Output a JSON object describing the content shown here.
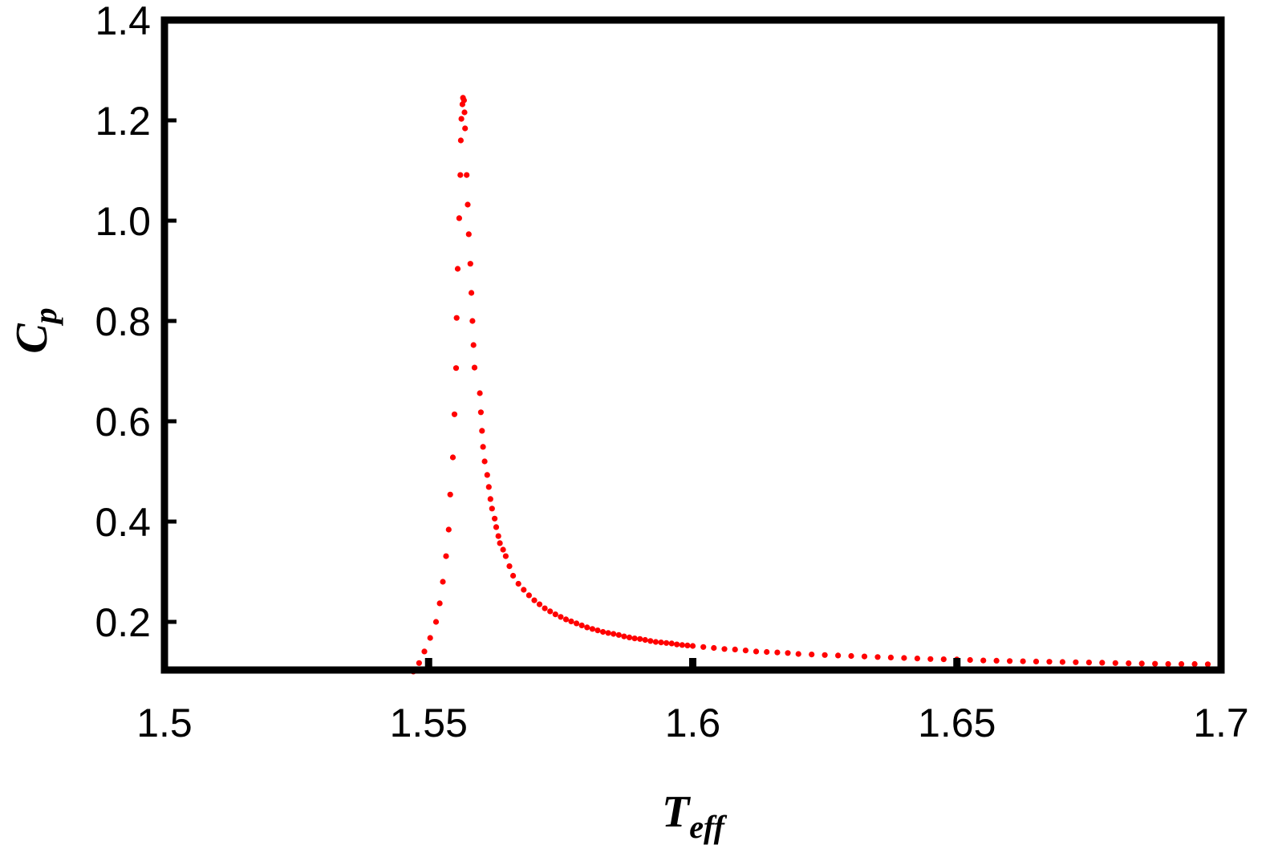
{
  "chart_data": {
    "type": "scatter",
    "title": "",
    "xlabel": "T",
    "xlabel_sub": "eff",
    "ylabel": "C",
    "ylabel_sub": "p",
    "xlim": [
      1.5,
      1.7
    ],
    "ylim": [
      0.1,
      1.4
    ],
    "grid": false,
    "x_ticks": [
      1.5,
      1.55,
      1.6,
      1.65,
      1.7
    ],
    "x_tick_labels": [
      "1.5",
      "1.55",
      "1.6",
      "1.65",
      "1.7"
    ],
    "y_ticks": [
      0.2,
      0.4,
      0.6,
      0.8,
      1.0,
      1.2,
      1.4
    ],
    "y_tick_labels": [
      "0.2",
      "0.4",
      "0.6",
      "0.8",
      "1.0",
      "1.2",
      "1.4"
    ],
    "marker_color": "#ff0000",
    "series": [
      {
        "name": "Cp",
        "points": [
          [
            1.5471,
            0.101
          ],
          [
            1.5482,
            0.118
          ],
          [
            1.5492,
            0.141
          ],
          [
            1.5503,
            0.168
          ],
          [
            1.5514,
            0.2
          ],
          [
            1.5521,
            0.237
          ],
          [
            1.5527,
            0.28
          ],
          [
            1.5533,
            0.331
          ],
          [
            1.5538,
            0.384
          ],
          [
            1.5541,
            0.454
          ],
          [
            1.5546,
            0.528
          ],
          [
            1.5549,
            0.614
          ],
          [
            1.5552,
            0.706
          ],
          [
            1.5553,
            0.806
          ],
          [
            1.5555,
            0.904
          ],
          [
            1.5558,
            1.005
          ],
          [
            1.556,
            1.091
          ],
          [
            1.5561,
            1.16
          ],
          [
            1.5562,
            1.203
          ],
          [
            1.5564,
            1.232
          ],
          [
            1.5565,
            1.245
          ],
          [
            1.5567,
            1.24
          ],
          [
            1.5568,
            1.216
          ],
          [
            1.5569,
            1.184
          ],
          [
            1.5572,
            1.091
          ],
          [
            1.5574,
            1.032
          ],
          [
            1.5576,
            0.973
          ],
          [
            1.5579,
            0.914
          ],
          [
            1.5581,
            0.856
          ],
          [
            1.5583,
            0.8
          ],
          [
            1.5585,
            0.752
          ],
          [
            1.5587,
            0.707
          ],
          [
            1.5597,
            0.656
          ],
          [
            1.5599,
            0.618
          ],
          [
            1.5601,
            0.581
          ],
          [
            1.5603,
            0.549
          ],
          [
            1.5606,
            0.52
          ],
          [
            1.5611,
            0.493
          ],
          [
            1.5614,
            0.469
          ],
          [
            1.5617,
            0.445
          ],
          [
            1.562,
            0.426
          ],
          [
            1.5625,
            0.406
          ],
          [
            1.5628,
            0.389
          ],
          [
            1.5632,
            0.371
          ],
          [
            1.5635,
            0.357
          ],
          [
            1.5641,
            0.344
          ],
          [
            1.5646,
            0.331
          ],
          [
            1.5653,
            0.311
          ],
          [
            1.566,
            0.292
          ],
          [
            1.567,
            0.276
          ],
          [
            1.568,
            0.264
          ],
          [
            1.569,
            0.253
          ],
          [
            1.57,
            0.243
          ],
          [
            1.571,
            0.235
          ],
          [
            1.572,
            0.227
          ],
          [
            1.573,
            0.221
          ],
          [
            1.574,
            0.215
          ],
          [
            1.575,
            0.21
          ],
          [
            1.576,
            0.205
          ],
          [
            1.577,
            0.201
          ],
          [
            1.578,
            0.197
          ],
          [
            1.579,
            0.193
          ],
          [
            1.58,
            0.189
          ],
          [
            1.581,
            0.186
          ],
          [
            1.582,
            0.183
          ],
          [
            1.583,
            0.18
          ],
          [
            1.584,
            0.178
          ],
          [
            1.585,
            0.176
          ],
          [
            1.586,
            0.174
          ],
          [
            1.587,
            0.171
          ],
          [
            1.588,
            0.169
          ],
          [
            1.589,
            0.167
          ],
          [
            1.59,
            0.166
          ],
          [
            1.591,
            0.164
          ],
          [
            1.592,
            0.162
          ],
          [
            1.593,
            0.16
          ],
          [
            1.594,
            0.159
          ],
          [
            1.595,
            0.158
          ],
          [
            1.596,
            0.157
          ],
          [
            1.597,
            0.155
          ],
          [
            1.598,
            0.154
          ],
          [
            1.599,
            0.153
          ],
          [
            1.6,
            0.152
          ],
          [
            1.602,
            0.15
          ],
          [
            1.604,
            0.148
          ],
          [
            1.606,
            0.146
          ],
          [
            1.608,
            0.145
          ],
          [
            1.61,
            0.143
          ],
          [
            1.612,
            0.141
          ],
          [
            1.614,
            0.14
          ],
          [
            1.616,
            0.139
          ],
          [
            1.618,
            0.138
          ],
          [
            1.62,
            0.136
          ],
          [
            1.6225,
            0.135
          ],
          [
            1.625,
            0.134
          ],
          [
            1.6275,
            0.133
          ],
          [
            1.63,
            0.132
          ],
          [
            1.6325,
            0.131
          ],
          [
            1.635,
            0.13
          ],
          [
            1.6375,
            0.129
          ],
          [
            1.64,
            0.128
          ],
          [
            1.6425,
            0.127
          ],
          [
            1.645,
            0.126
          ],
          [
            1.6475,
            0.1255
          ],
          [
            1.65,
            0.125
          ],
          [
            1.6525,
            0.124
          ],
          [
            1.655,
            0.123
          ],
          [
            1.6575,
            0.1225
          ],
          [
            1.66,
            0.122
          ],
          [
            1.6625,
            0.1215
          ],
          [
            1.665,
            0.121
          ],
          [
            1.6675,
            0.1205
          ],
          [
            1.67,
            0.12
          ],
          [
            1.6725,
            0.1195
          ],
          [
            1.675,
            0.119
          ],
          [
            1.6775,
            0.1185
          ],
          [
            1.68,
            0.118
          ],
          [
            1.6825,
            0.1175
          ],
          [
            1.685,
            0.117
          ],
          [
            1.6875,
            0.1165
          ],
          [
            1.69,
            0.116
          ],
          [
            1.6925,
            0.116
          ],
          [
            1.695,
            0.116
          ],
          [
            1.6975,
            0.1155
          ],
          [
            1.7,
            0.115
          ]
        ]
      }
    ]
  }
}
